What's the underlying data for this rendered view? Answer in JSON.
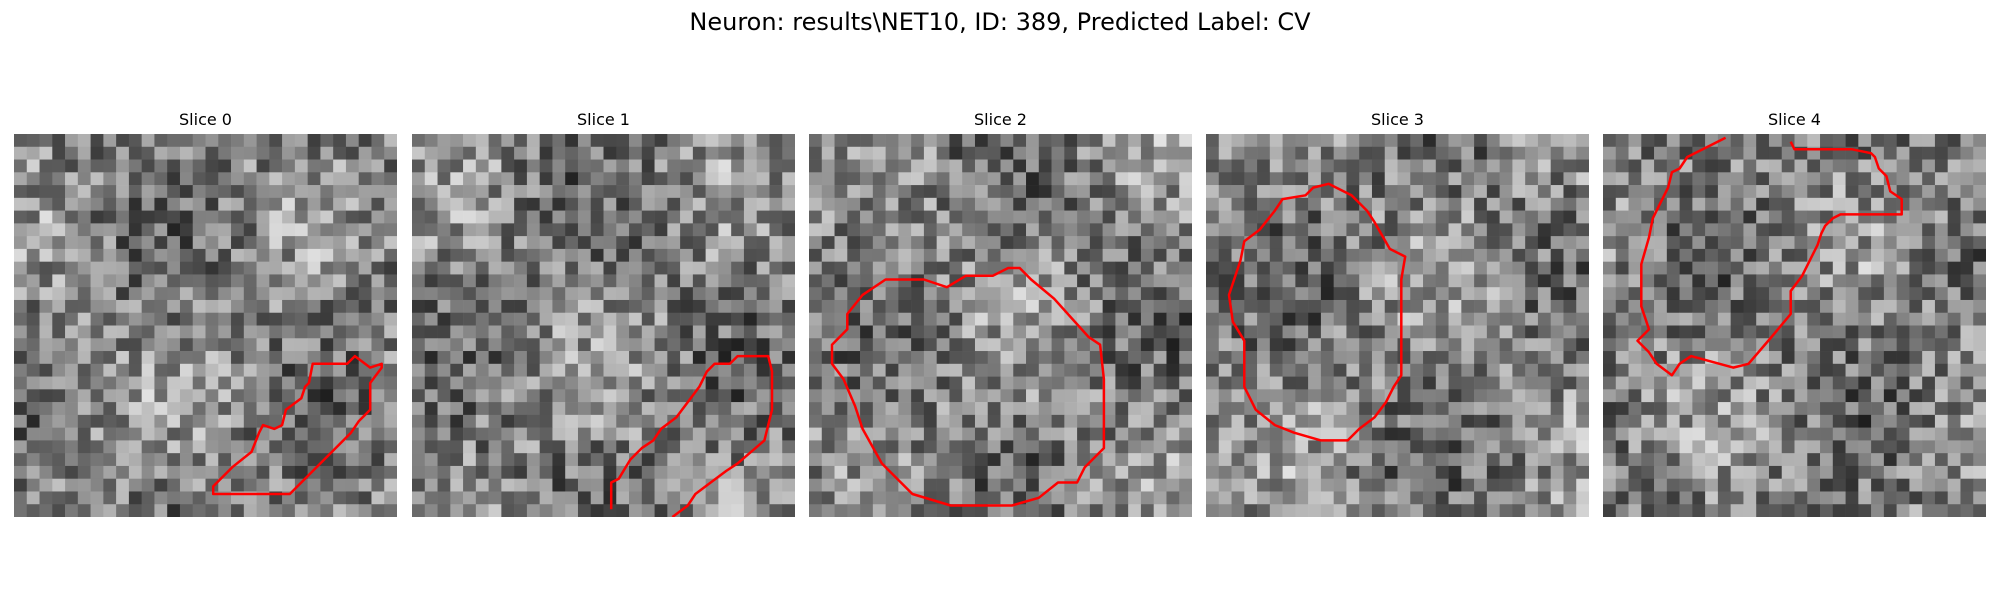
{
  "figure": {
    "title": "Neuron: results\\NET10, ID: 389, Predicted Label: CV"
  },
  "slices": [
    {
      "title": "Slice 0",
      "roi": [
        [
          0.52,
          0.92
        ],
        [
          0.52,
          0.94
        ],
        [
          0.72,
          0.94
        ],
        [
          0.88,
          0.78
        ],
        [
          0.9,
          0.75
        ],
        [
          0.93,
          0.72
        ],
        [
          0.93,
          0.65
        ],
        [
          0.96,
          0.61
        ],
        [
          0.96,
          0.6
        ],
        [
          0.93,
          0.61
        ],
        [
          0.89,
          0.58
        ],
        [
          0.87,
          0.6
        ],
        [
          0.78,
          0.6
        ],
        [
          0.77,
          0.65
        ],
        [
          0.76,
          0.66
        ],
        [
          0.75,
          0.69
        ],
        [
          0.71,
          0.72
        ],
        [
          0.7,
          0.76
        ],
        [
          0.68,
          0.77
        ],
        [
          0.65,
          0.76
        ],
        [
          0.64,
          0.78
        ],
        [
          0.62,
          0.83
        ],
        [
          0.57,
          0.87
        ],
        [
          0.54,
          0.9
        ]
      ]
    },
    {
      "title": "Slice 1",
      "roi": [
        [
          0.52,
          0.98
        ],
        [
          0.52,
          0.91
        ],
        [
          0.54,
          0.9
        ],
        [
          0.57,
          0.85
        ],
        [
          0.6,
          0.82
        ],
        [
          0.63,
          0.8
        ],
        [
          0.65,
          0.77
        ],
        [
          0.69,
          0.74
        ],
        [
          0.72,
          0.7
        ],
        [
          0.75,
          0.66
        ],
        [
          0.77,
          0.62
        ],
        [
          0.79,
          0.6
        ],
        [
          0.83,
          0.6
        ],
        [
          0.85,
          0.58
        ],
        [
          0.93,
          0.58
        ],
        [
          0.94,
          0.62
        ],
        [
          0.94,
          0.72
        ],
        [
          0.92,
          0.8
        ],
        [
          0.85,
          0.86
        ],
        [
          0.82,
          0.88
        ],
        [
          0.78,
          0.91
        ],
        [
          0.74,
          0.94
        ],
        [
          0.72,
          0.97
        ],
        [
          0.68,
          1.0
        ]
      ]
    },
    {
      "title": "Slice 2",
      "roi": [
        [
          0.14,
          0.42
        ],
        [
          0.2,
          0.38
        ],
        [
          0.3,
          0.38
        ],
        [
          0.36,
          0.4
        ],
        [
          0.41,
          0.37
        ],
        [
          0.48,
          0.37
        ],
        [
          0.52,
          0.35
        ],
        [
          0.55,
          0.35
        ],
        [
          0.58,
          0.38
        ],
        [
          0.64,
          0.43
        ],
        [
          0.73,
          0.53
        ],
        [
          0.76,
          0.55
        ],
        [
          0.77,
          0.64
        ],
        [
          0.77,
          0.82
        ],
        [
          0.72,
          0.87
        ],
        [
          0.7,
          0.91
        ],
        [
          0.65,
          0.91
        ],
        [
          0.6,
          0.95
        ],
        [
          0.53,
          0.97
        ],
        [
          0.37,
          0.97
        ],
        [
          0.27,
          0.94
        ],
        [
          0.19,
          0.86
        ],
        [
          0.14,
          0.77
        ],
        [
          0.12,
          0.71
        ],
        [
          0.09,
          0.64
        ],
        [
          0.06,
          0.6
        ],
        [
          0.06,
          0.55
        ],
        [
          0.1,
          0.51
        ],
        [
          0.1,
          0.47
        ]
      ]
    },
    {
      "title": "Slice 3",
      "roi": [
        [
          0.18,
          0.2
        ],
        [
          0.2,
          0.17
        ],
        [
          0.26,
          0.16
        ],
        [
          0.28,
          0.14
        ],
        [
          0.32,
          0.13
        ],
        [
          0.34,
          0.14
        ],
        [
          0.38,
          0.16
        ],
        [
          0.42,
          0.2
        ],
        [
          0.44,
          0.23
        ],
        [
          0.48,
          0.3
        ],
        [
          0.52,
          0.32
        ],
        [
          0.51,
          0.38
        ],
        [
          0.51,
          0.6
        ],
        [
          0.51,
          0.63
        ],
        [
          0.49,
          0.66
        ],
        [
          0.47,
          0.7
        ],
        [
          0.44,
          0.74
        ],
        [
          0.4,
          0.77
        ],
        [
          0.37,
          0.8
        ],
        [
          0.3,
          0.8
        ],
        [
          0.23,
          0.78
        ],
        [
          0.18,
          0.76
        ],
        [
          0.13,
          0.72
        ],
        [
          0.1,
          0.66
        ],
        [
          0.1,
          0.54
        ],
        [
          0.07,
          0.49
        ],
        [
          0.06,
          0.42
        ],
        [
          0.09,
          0.33
        ],
        [
          0.1,
          0.28
        ],
        [
          0.14,
          0.25
        ]
      ]
    },
    {
      "title": "Slice 4",
      "roi": [
        [
          0.32,
          0.01
        ],
        [
          0.22,
          0.06
        ],
        [
          0.2,
          0.09
        ],
        [
          0.18,
          0.1
        ],
        [
          0.17,
          0.14
        ],
        [
          0.15,
          0.18
        ],
        [
          0.13,
          0.22
        ],
        [
          0.12,
          0.27
        ],
        [
          0.1,
          0.34
        ],
        [
          0.1,
          0.45
        ],
        [
          0.12,
          0.51
        ],
        [
          0.11,
          0.52
        ],
        [
          0.09,
          0.54
        ],
        [
          0.12,
          0.57
        ],
        [
          0.14,
          0.6
        ],
        [
          0.18,
          0.63
        ],
        [
          0.2,
          0.6
        ],
        [
          0.23,
          0.58
        ],
        [
          0.34,
          0.61
        ],
        [
          0.38,
          0.6
        ],
        [
          0.44,
          0.53
        ],
        [
          0.49,
          0.47
        ],
        [
          0.49,
          0.41
        ],
        [
          0.52,
          0.37
        ],
        [
          0.54,
          0.33
        ],
        [
          0.56,
          0.29
        ],
        [
          0.57,
          0.26
        ],
        [
          0.58,
          0.24
        ],
        [
          0.6,
          0.22
        ],
        [
          0.62,
          0.21
        ],
        [
          0.78,
          0.21
        ],
        [
          0.78,
          0.17
        ],
        [
          0.75,
          0.15
        ],
        [
          0.74,
          0.11
        ],
        [
          0.72,
          0.09
        ],
        [
          0.71,
          0.06
        ],
        [
          0.7,
          0.05
        ],
        [
          0.65,
          0.04
        ],
        [
          0.5,
          0.04
        ],
        [
          0.49,
          0.02
        ]
      ]
    }
  ],
  "contour_color": "#ff0000"
}
